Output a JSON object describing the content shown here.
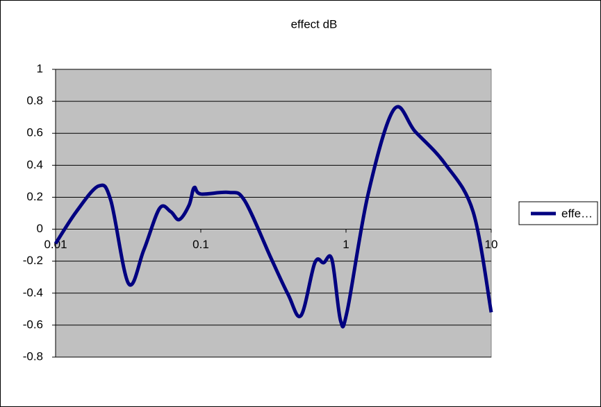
{
  "chart_data": {
    "type": "line",
    "title": "effect dB",
    "x": [
      0.01,
      0.0139,
      0.0198,
      0.024,
      0.0318,
      0.0405,
      0.052,
      0.062,
      0.071,
      0.083,
      0.09,
      0.1,
      0.156,
      0.2,
      0.304,
      0.4,
      0.49,
      0.61,
      0.7,
      0.8,
      0.916,
      1.02,
      1.42,
      2.14,
      3.0,
      4.8,
      7.5,
      10
    ],
    "series": [
      {
        "name": "effe…",
        "color": "#000080",
        "values": [
          -0.09,
          0.11,
          0.27,
          0.18,
          -0.34,
          -0.13,
          0.13,
          0.11,
          0.06,
          0.15,
          0.26,
          0.22,
          0.23,
          0.18,
          -0.18,
          -0.41,
          -0.54,
          -0.21,
          -0.21,
          -0.19,
          -0.57,
          -0.51,
          0.22,
          0.75,
          0.61,
          0.41,
          0.11,
          -0.52
        ]
      }
    ],
    "xlim": [
      0.01,
      10
    ],
    "xticks": [
      0.01,
      0.1,
      1,
      10
    ],
    "xlog": true,
    "ylim": [
      -0.8,
      1
    ],
    "yticks": [
      -0.8,
      -0.6,
      -0.4,
      -0.2,
      0,
      0.2,
      0.4,
      0.6,
      0.8,
      1
    ],
    "grid": true,
    "plot_background": "#c0c0c0",
    "legend": "right"
  }
}
